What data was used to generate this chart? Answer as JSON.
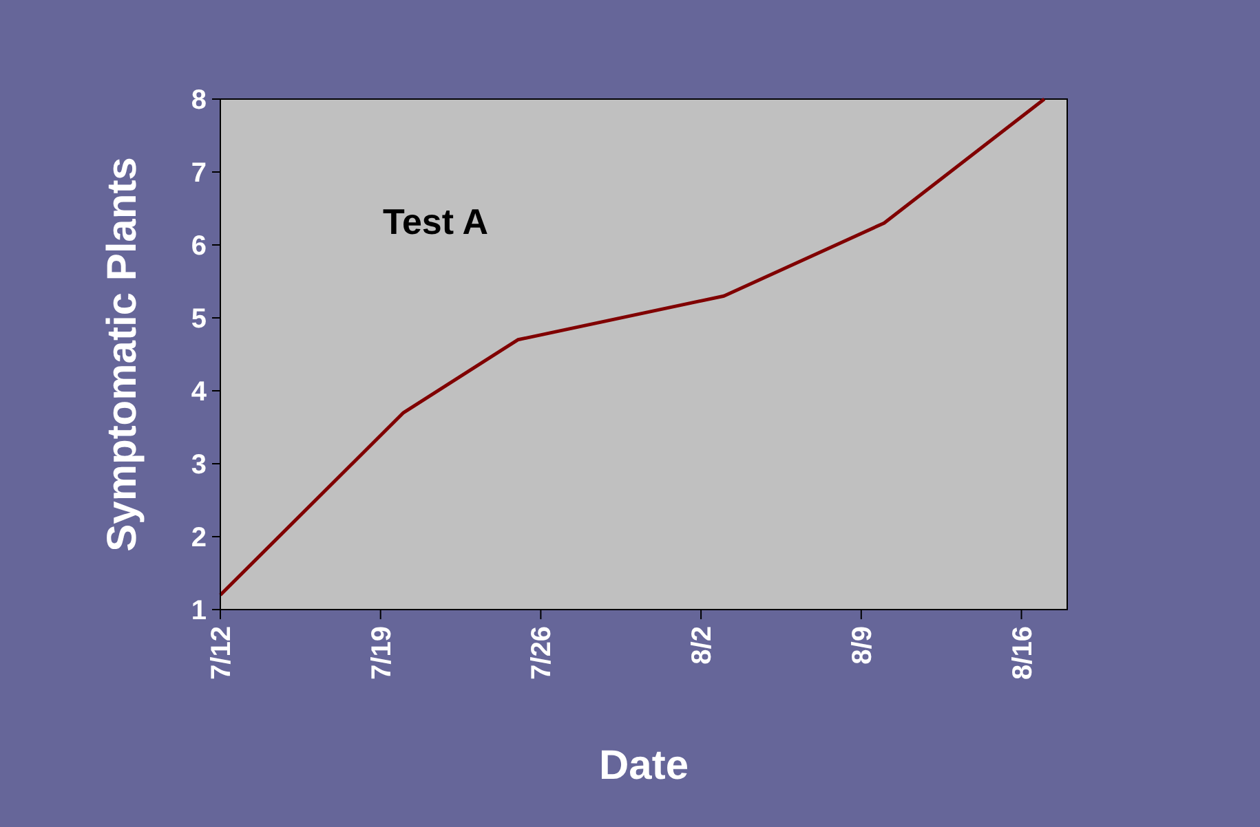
{
  "chart_data": {
    "type": "line",
    "xlabel": "Date",
    "ylabel": "Symptomatic Plants",
    "annotations": [
      "Test A"
    ],
    "x": [
      "--07-12",
      "--07-20",
      "--07-25",
      "--08-03",
      "--08-10",
      "--08-17"
    ],
    "series": [
      {
        "color": "#800000",
        "values": [
          1.2,
          3.7,
          4.7,
          5.3,
          6.3,
          8
        ]
      }
    ],
    "xlim": [
      "--07-12",
      "--08-18"
    ],
    "xticks": [
      {
        "value": "--07-12",
        "label": "7/12"
      },
      {
        "value": "--07-19",
        "label": "7/19"
      },
      {
        "value": "--07-26",
        "label": "7/26"
      },
      {
        "value": "--08-02",
        "label": "8/2"
      },
      {
        "value": "--08-09",
        "label": "8/9"
      },
      {
        "value": "--08-16",
        "label": "8/16"
      }
    ],
    "ylim": [
      1,
      8
    ],
    "yticks": [
      1,
      2,
      3,
      4,
      5,
      6,
      7,
      8
    ],
    "grid": false,
    "marker": "none",
    "line_style": "solid"
  }
}
